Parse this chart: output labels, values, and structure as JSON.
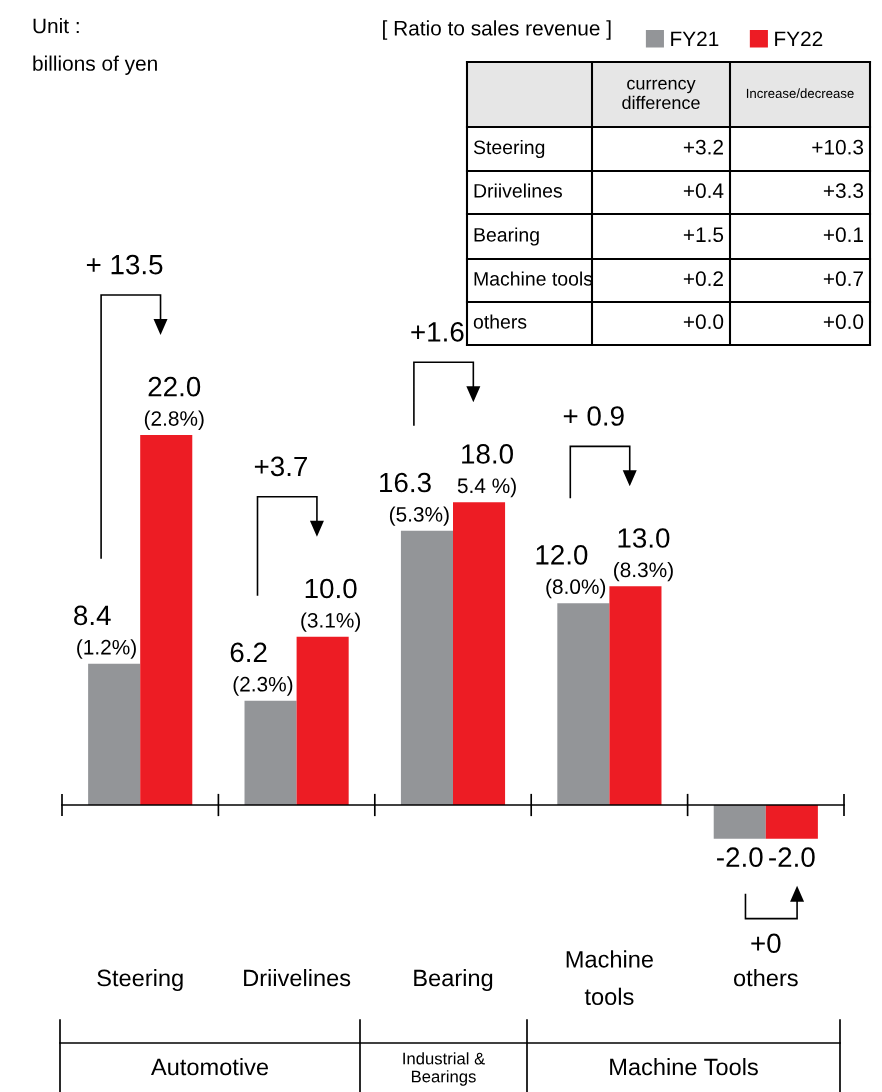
{
  "chart_data": {
    "type": "bar",
    "legend_title": "[ Ratio to sales revenue ]",
    "legend": "top right",
    "categories": [
      "Steering",
      "Driivelines",
      "Bearing",
      "Machine\ntools",
      "others"
    ],
    "series": [
      {
        "name": "FY21",
        "color": "#939598",
        "values": [
          8.4,
          6.2,
          16.3,
          12.0,
          -2.0
        ],
        "value_labels": [
          "8.4\n(1.2%)",
          "6.2\n(2.3%)",
          "16.3\n(5.3%)",
          "12.0\n(8.0%)",
          "-2.0"
        ]
      },
      {
        "name": "FY22",
        "color": "#ed1c24",
        "values": [
          22.0,
          10.0,
          18.0,
          13.0,
          -2.0
        ],
        "value_labels": [
          "22.0\n(2.8%)",
          "10.0\n(3.1%)",
          "18.0\n5.4 %)",
          "13.0\n(8.3%)",
          "-2.0"
        ]
      }
    ],
    "annotations": [
      "Unit :\nbillions of yen",
      "+ 13.5",
      "+3.7",
      "+1.6",
      "+ 0.9",
      "+0",
      "currency\ndifference",
      "Increase/decrease",
      "Steering",
      "+3.2",
      "+10.3",
      "Driivelines",
      "+0.4",
      "+3.3",
      "Bearing",
      "+1.5",
      "+0.1",
      "Machine tools",
      "+0.2",
      "+0.7",
      "others",
      "+0.0",
      "+0.0",
      "Automotive",
      "Industrial &\nBearings",
      "Machine Tools"
    ]
  }
}
